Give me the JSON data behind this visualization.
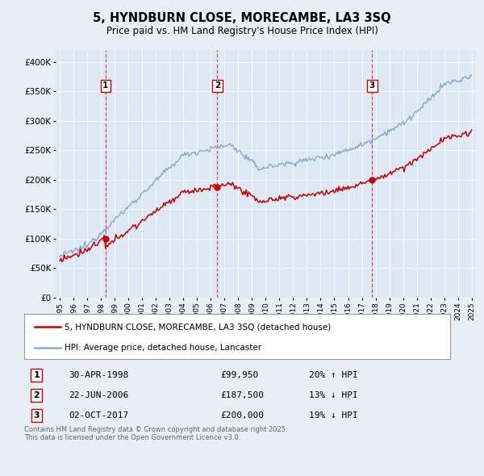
{
  "title": "5, HYNDBURN CLOSE, MORECAMBE, LA3 3SQ",
  "subtitle": "Price paid vs. HM Land Registry's House Price Index (HPI)",
  "background_color": "#e8eef5",
  "plot_bg_color": "#dce8f4",
  "sale_label": "5, HYNDBURN CLOSE, MORECAMBE, LA3 3SQ (detached house)",
  "hpi_label": "HPI: Average price, detached house, Lancaster",
  "footer": "Contains HM Land Registry data © Crown copyright and database right 2025.\nThis data is licensed under the Open Government Licence v3.0.",
  "sales": [
    {
      "num": 1,
      "date": "30-APR-1998",
      "price": 99950,
      "hpi_pct": "20% ↑ HPI",
      "year": 1998.33
    },
    {
      "num": 2,
      "date": "22-JUN-2006",
      "price": 187500,
      "hpi_pct": "13% ↓ HPI",
      "year": 2006.47
    },
    {
      "num": 3,
      "date": "02-OCT-2017",
      "price": 200000,
      "hpi_pct": "19% ↓ HPI",
      "year": 2017.75
    }
  ],
  "sale_color": "#cc0000",
  "hpi_color": "#88aacc",
  "dashed_color": "#dd3333",
  "ylim": [
    0,
    420000
  ],
  "xlim_start": 1994.7,
  "xlim_end": 2025.3,
  "yticks": [
    0,
    50000,
    100000,
    150000,
    200000,
    250000,
    300000,
    350000,
    400000
  ],
  "ytick_labels": [
    "£0",
    "£50K",
    "£100K",
    "£150K",
    "£200K",
    "£250K",
    "£300K",
    "£350K",
    "£400K"
  ],
  "xticks": [
    1995,
    1996,
    1997,
    1998,
    1999,
    2000,
    2001,
    2002,
    2003,
    2004,
    2005,
    2006,
    2007,
    2008,
    2009,
    2010,
    2011,
    2012,
    2013,
    2014,
    2015,
    2016,
    2017,
    2018,
    2019,
    2020,
    2021,
    2022,
    2023,
    2024,
    2025
  ]
}
